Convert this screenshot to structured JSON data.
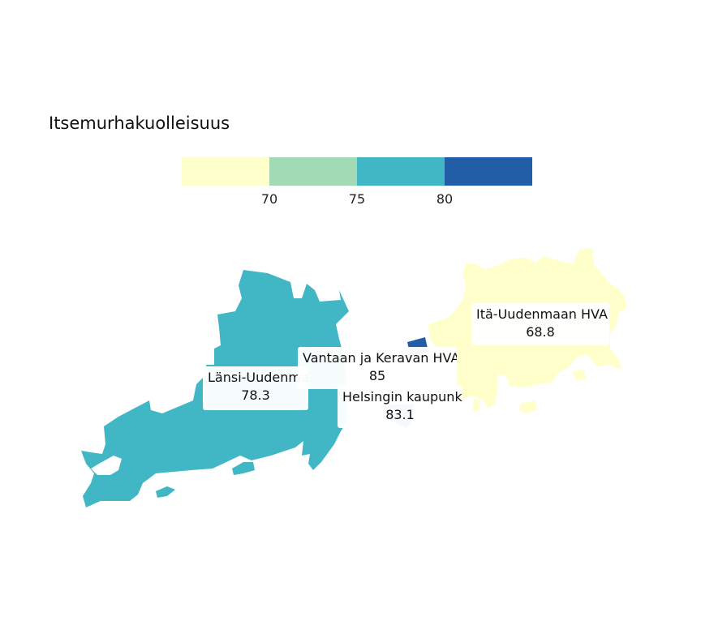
{
  "legend": {
    "title": "Itsemurhakuolleisuus",
    "colors": [
      "#ffffcc",
      "#a1dab4",
      "#41b6c4",
      "#225ea8"
    ],
    "ticks": [
      "70",
      "75",
      "80"
    ]
  },
  "regions": [
    {
      "name": "Länsi-Uudenmaan HVA",
      "display_name": "Länsi-Uudenma",
      "value": "78.3",
      "color": "#41b6c4"
    },
    {
      "name": "Vantaan ja Keravan HVA",
      "display_name": "Vantaan ja Keravan HVA",
      "value": "85",
      "color": "#225ea8"
    },
    {
      "name": "Helsingin kaupunki",
      "display_name": "Helsingin kaupunki",
      "value": "83.1",
      "color": "#225ea8"
    },
    {
      "name": "Itä-Uudenmaan HVA",
      "display_name": "Itä-Uudenmaan HVA",
      "value": "68.8",
      "color": "#ffffcc"
    }
  ]
}
